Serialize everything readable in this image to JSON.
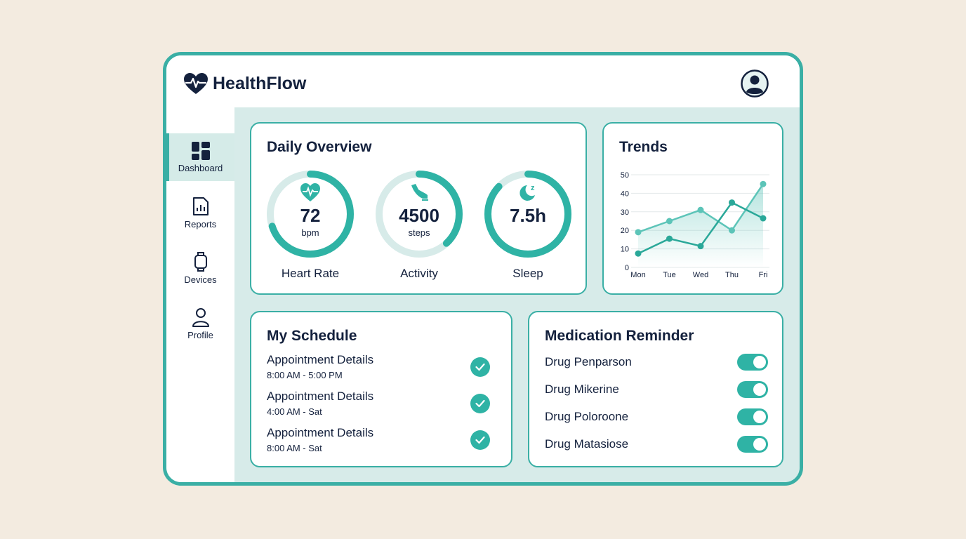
{
  "app": {
    "title": "HealthFlow"
  },
  "colors": {
    "accent": "#2fb3a5",
    "navy": "#14213d",
    "track": "#d7ebe9"
  },
  "sidebar": {
    "items": [
      {
        "label": "Dashboard",
        "icon": "dashboard-grid-icon",
        "active": true
      },
      {
        "label": "Reports",
        "icon": "report-document-icon"
      },
      {
        "label": "Devices",
        "icon": "smartwatch-icon"
      },
      {
        "label": "Profile",
        "icon": "user-icon"
      }
    ]
  },
  "overview": {
    "title": "Daily Overview",
    "metrics": [
      {
        "label": "Heart Rate",
        "value": "72",
        "unit": "bpm",
        "icon": "heart-pulse-icon",
        "progress": 0.7
      },
      {
        "label": "Activity",
        "value": "4500",
        "unit": "steps",
        "icon": "shoe-icon",
        "progress": 0.38
      },
      {
        "label": "Sleep",
        "value": "7.5h",
        "unit": "",
        "icon": "moon-sleep-icon",
        "progress": 0.87
      }
    ]
  },
  "trends": {
    "title": "Trends"
  },
  "chart_data": {
    "type": "line",
    "title": "Trends",
    "categories": [
      "Mon",
      "Tue",
      "Wed",
      "Thu",
      "Fri"
    ],
    "ylim": [
      0,
      50
    ],
    "yticks": [
      0,
      10,
      20,
      30,
      40,
      50
    ],
    "grid": true,
    "series": [
      {
        "values": [
          19,
          25,
          31,
          20,
          45
        ],
        "color": "#5cc4b8",
        "area": true
      },
      {
        "values": [
          7.5,
          15.5,
          11.5,
          35,
          26.5
        ],
        "color": "#2aa899"
      }
    ]
  },
  "schedule": {
    "title": "My Schedule",
    "items": [
      {
        "title": "Appointment Details",
        "time": "8:00 AM - 5:00 PM"
      },
      {
        "title": "Appointment Details",
        "time": "4:00 AM - Sat"
      },
      {
        "title": "Appointment Details",
        "time": "8:00 AM - Sat"
      }
    ]
  },
  "medication": {
    "title": "Medication Reminder",
    "items": [
      {
        "name": "Drug Penparson",
        "on": true
      },
      {
        "name": "Drug Mikerine",
        "on": true
      },
      {
        "name": "Drug Poloroone",
        "on": true
      },
      {
        "name": "Drug Matasiose",
        "on": true
      }
    ]
  }
}
